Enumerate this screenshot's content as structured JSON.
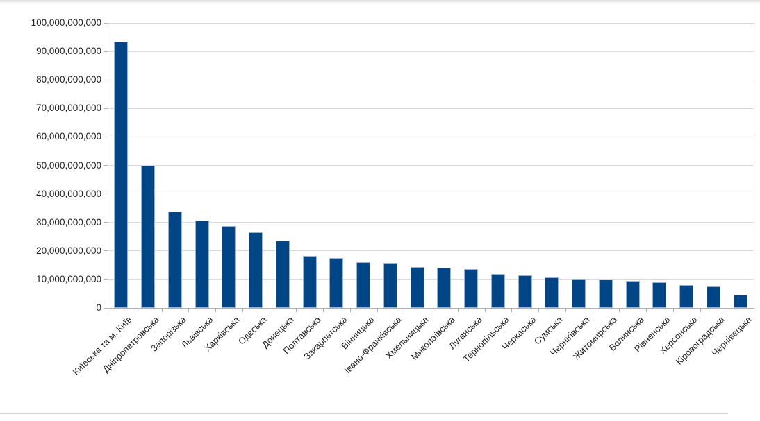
{
  "window": {
    "background_color": "#ffffff",
    "top_edge_shadow": true,
    "bottom_rule": true
  },
  "chart_data": {
    "type": "bar",
    "title": "",
    "xlabel": "",
    "ylabel": "",
    "legend": "none",
    "grid": "horizontal",
    "x_label_rotation_deg": 45,
    "ylim": [
      0,
      100000000000
    ],
    "y_tick_step": 10000000000,
    "y_ticks": [
      "0",
      "10,000,000,000",
      "20,000,000,000",
      "30,000,000,000",
      "40,000,000,000",
      "50,000,000,000",
      "60,000,000,000",
      "70,000,000,000",
      "80,000,000,000",
      "90,000,000,000",
      "100,000,000,000"
    ],
    "categories": [
      "Київська та м. Київ",
      "Дніпропетровська",
      "Запорізька",
      "Львівська",
      "Харківська",
      "Одеська",
      "Донецька",
      "Полтавська",
      "Закарпатська",
      "Вінницька",
      "Івано-Франківська",
      "Хмельницька",
      "Миколаївська",
      "Луганська",
      "Тернопільська",
      "Черкаська",
      "Сумська",
      "Чернігівська",
      "Житомирська",
      "Волинська",
      "Рівненська",
      "Херсонська",
      "Кіровоградська",
      "Чернівецька"
    ],
    "values": [
      93500000000,
      49800000000,
      33900000000,
      30700000000,
      28800000000,
      26400000000,
      23700000000,
      18200000000,
      17600000000,
      16100000000,
      15900000000,
      14300000000,
      14000000000,
      13600000000,
      11900000000,
      11500000000,
      10800000000,
      10300000000,
      9900000000,
      9500000000,
      8900000000,
      8100000000,
      7500000000,
      4700000000
    ],
    "colors": {
      "bar_fill": "#004586",
      "bar_border": "#9db3d1",
      "gridline": "#d9d9d9",
      "axis": "#b0b0b0",
      "label_text": "#1f1f1f"
    }
  }
}
